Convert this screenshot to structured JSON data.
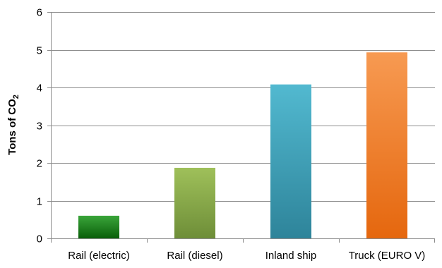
{
  "chart_data": {
    "type": "bar",
    "categories": [
      "Rail (electric)",
      "Rail (diesel)",
      "Inland ship",
      "Truck (EURO V)"
    ],
    "values": [
      0.6,
      1.87,
      4.08,
      4.93
    ],
    "title": "",
    "xlabel": "",
    "ylabel": "Tons of CO",
    "ylabel_subscript": "2",
    "ylim": [
      0,
      6
    ],
    "yticks": [
      "0",
      "1",
      "2",
      "3",
      "4",
      "5",
      "6"
    ],
    "grid": true,
    "legend": "none",
    "bar_colors": [
      {
        "top": "#3aa53a",
        "bottom": "#0a5f0a"
      },
      {
        "top": "#9fc05a",
        "bottom": "#6e8e38"
      },
      {
        "top": "#52b9d0",
        "bottom": "#2e849a"
      },
      {
        "top": "#f79a52",
        "bottom": "#e5670e"
      }
    ],
    "gridline_color": "#8c8c8c",
    "axis_color": "#8c8c8c",
    "text_color": "#000000"
  }
}
